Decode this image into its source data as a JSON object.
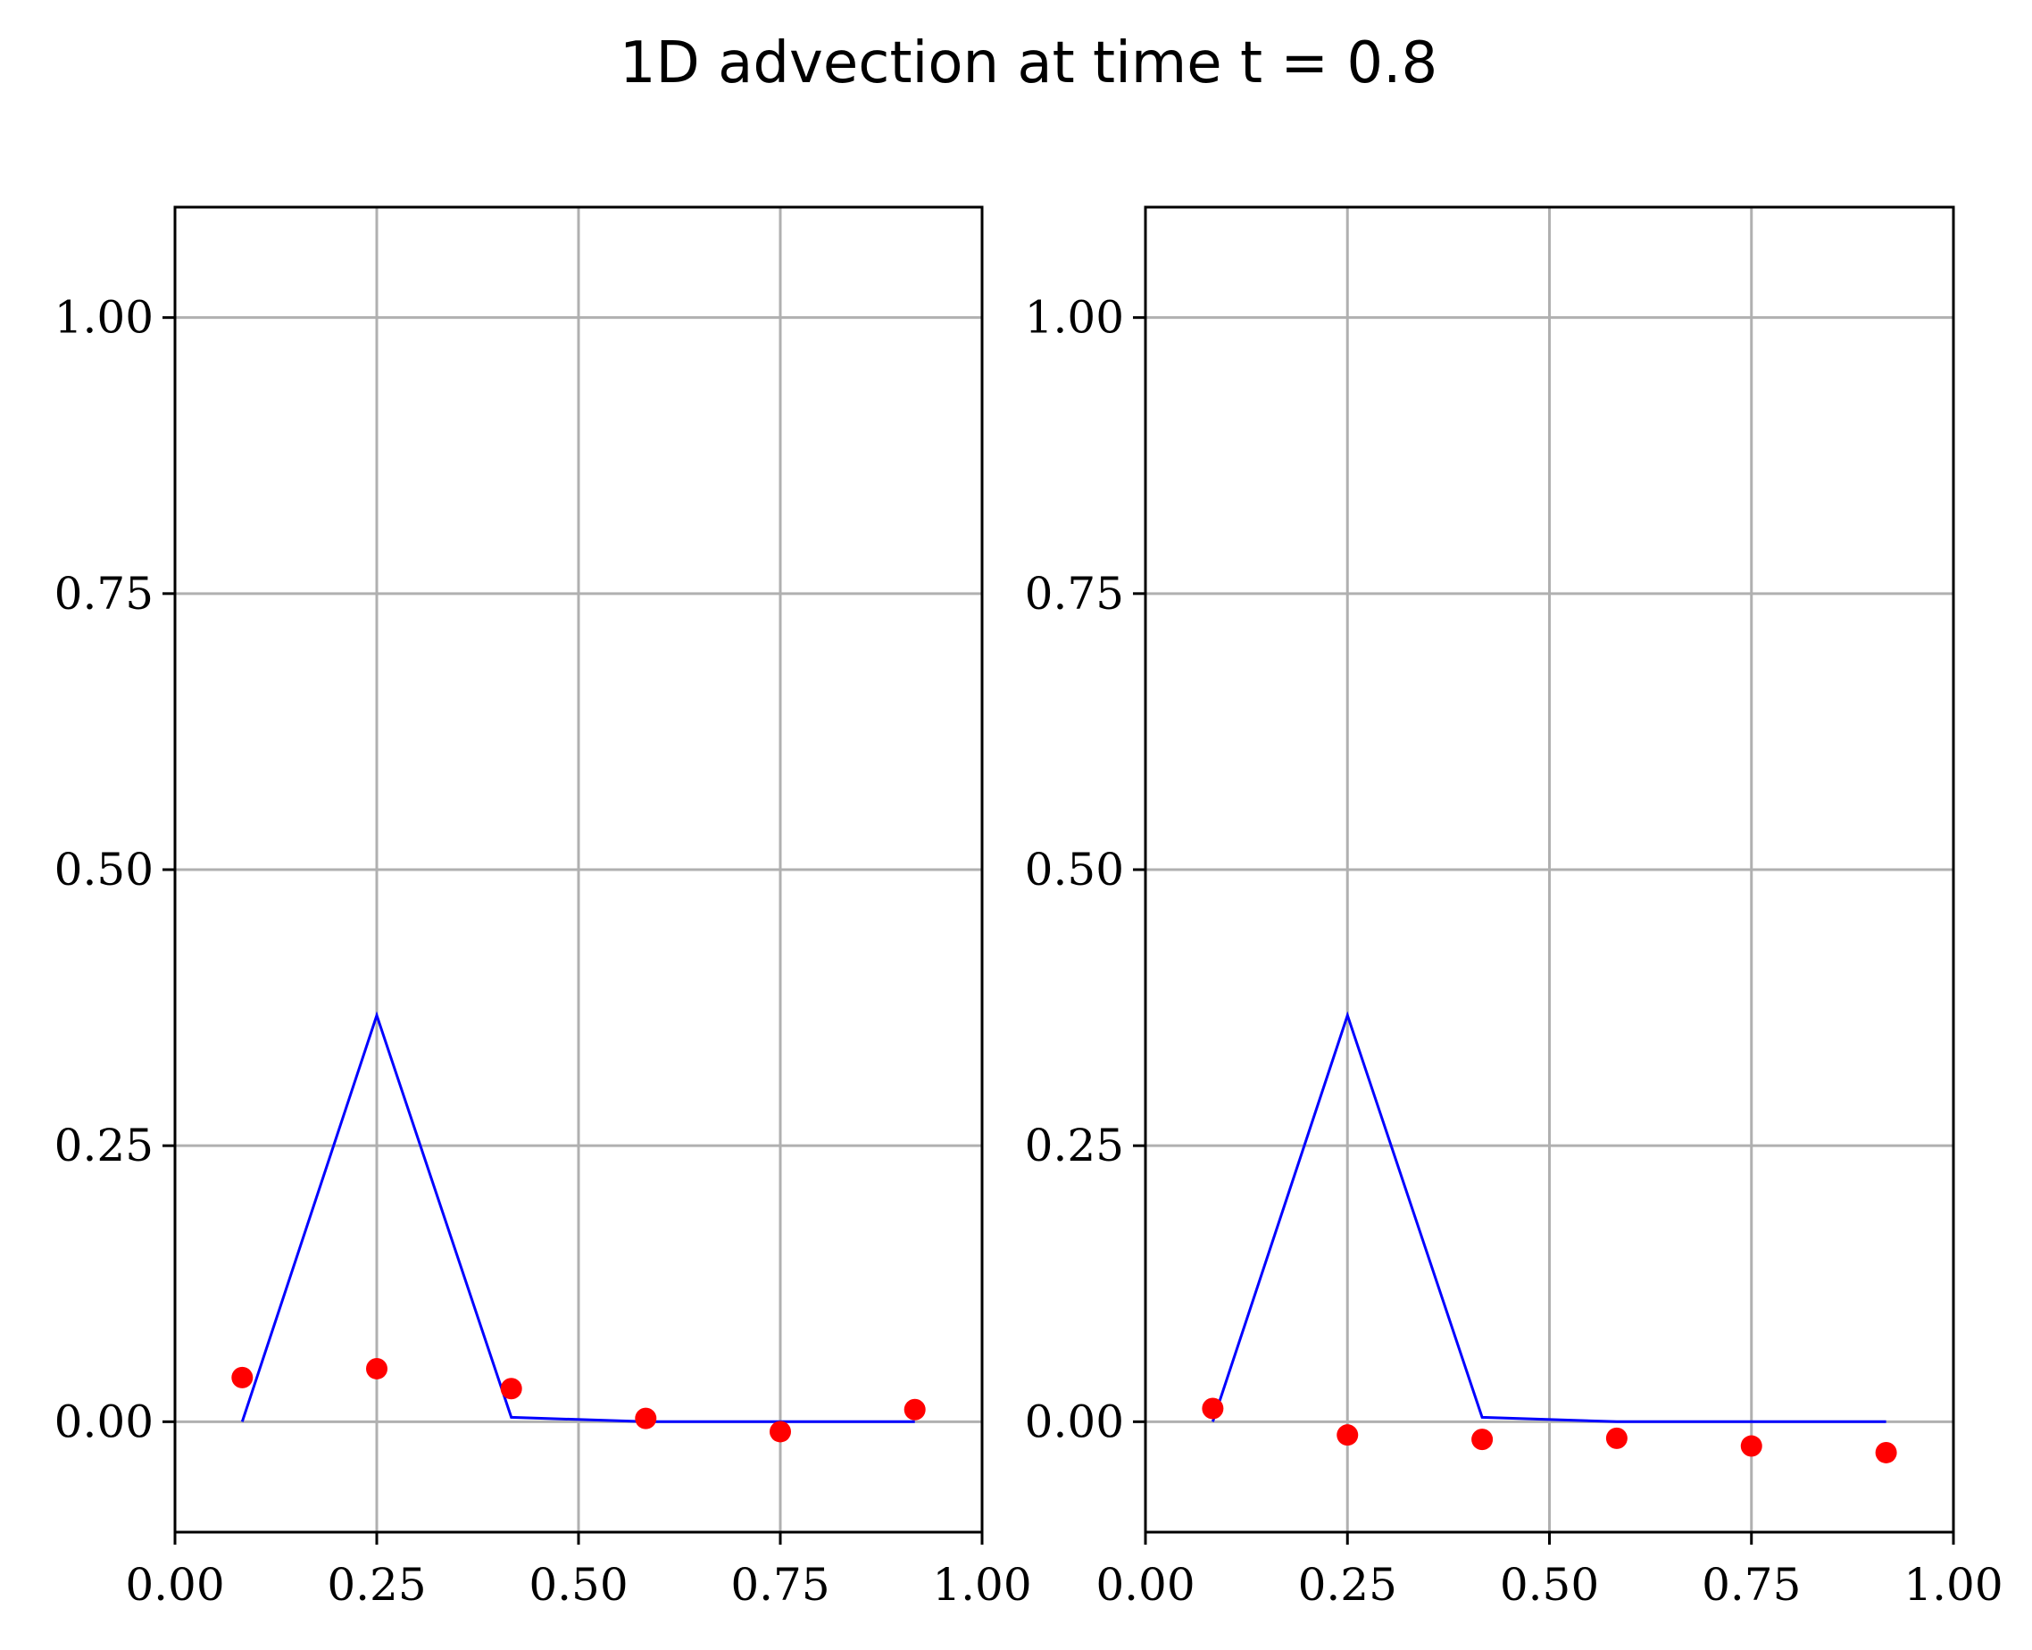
{
  "figure": {
    "suptitle": "1D advection at time t = 0.8"
  },
  "colors": {
    "line": "#0000ff",
    "points": "#ff0000",
    "grid": "#b0b0b0",
    "axes": "#000000"
  },
  "chart_data": [
    {
      "type": "line",
      "title": "",
      "xlabel": "",
      "ylabel": "",
      "xlim": [
        0.0,
        1.0
      ],
      "ylim": [
        -0.1,
        1.1
      ],
      "xticks": [
        0.0,
        0.25,
        0.5,
        0.75,
        1.0
      ],
      "xtick_labels": [
        "0.00",
        "0.25",
        "0.50",
        "0.75",
        "1.00"
      ],
      "yticks": [
        0.0,
        0.25,
        0.5,
        0.75,
        1.0
      ],
      "ytick_labels": [
        "0.00",
        "0.25",
        "0.50",
        "0.75",
        "1.00"
      ],
      "grid": true,
      "series": [
        {
          "kind": "line",
          "x": [
            0.0833,
            0.25,
            0.4167,
            0.5833,
            0.75,
            0.9167
          ],
          "y": [
            0.0,
            0.368,
            0.004,
            0.0,
            0.0,
            0.0
          ]
        },
        {
          "kind": "scatter",
          "x": [
            0.0833,
            0.25,
            0.4167,
            0.5833,
            0.75,
            0.9167
          ],
          "y": [
            0.04,
            0.048,
            0.03,
            0.003,
            -0.009,
            0.011
          ]
        }
      ]
    },
    {
      "type": "line",
      "title": "",
      "xlabel": "",
      "ylabel": "",
      "xlim": [
        0.0,
        1.0
      ],
      "ylim": [
        -0.1,
        1.1
      ],
      "xticks": [
        0.0,
        0.25,
        0.5,
        0.75,
        1.0
      ],
      "xtick_labels": [
        "0.00",
        "0.25",
        "0.50",
        "0.75",
        "1.00"
      ],
      "yticks": [
        0.0,
        0.25,
        0.5,
        0.75,
        1.0
      ],
      "ytick_labels": [
        "0.00",
        "0.25",
        "0.50",
        "0.75",
        "1.00"
      ],
      "grid": true,
      "series": [
        {
          "kind": "line",
          "x": [
            0.0833,
            0.25,
            0.4167,
            0.5833,
            0.75,
            0.9167
          ],
          "y": [
            0.0,
            0.368,
            0.004,
            0.0,
            0.0,
            0.0
          ]
        },
        {
          "kind": "scatter",
          "x": [
            0.0833,
            0.25,
            0.4167,
            0.5833,
            0.75,
            0.9167
          ],
          "y": [
            0.012,
            -0.012,
            -0.016,
            -0.015,
            -0.022,
            -0.028
          ]
        }
      ]
    }
  ]
}
